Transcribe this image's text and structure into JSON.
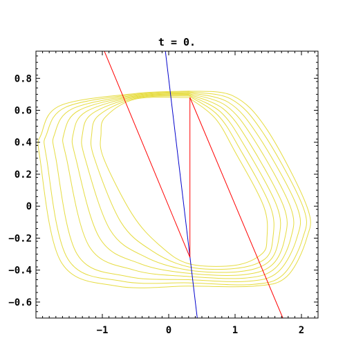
{
  "chart_data": {
    "type": "line",
    "title": "t = 0.",
    "xlabel": "",
    "ylabel": "",
    "xlim": [
      -2.0,
      2.25
    ],
    "ylim": [
      -0.7,
      0.97
    ],
    "xticks": [
      -1,
      0,
      1,
      2
    ],
    "xtick_labels": [
      "−1",
      "0",
      "1",
      "2"
    ],
    "yticks": [
      -0.6,
      -0.4,
      -0.2,
      0,
      0.2,
      0.4,
      0.6,
      0.8
    ],
    "ytick_labels": [
      "−0.6",
      "−0.4",
      "−0.2",
      "0",
      "0.2",
      "0.4",
      "0.6",
      "0.8"
    ],
    "grid": false,
    "legend": "none",
    "colors": {
      "contours": "#e6dc40",
      "red": "#ff0000",
      "blue": "#0000cc",
      "frame": "#000000"
    },
    "contours": {
      "color": "contours",
      "curves": [
        {
          "points": [
            [
              0.3,
              0.68
            ],
            [
              -0.5,
              0.67
            ],
            [
              -0.95,
              0.56
            ],
            [
              -1.02,
              0.45
            ],
            [
              -0.98,
              0.3
            ],
            [
              -0.55,
              -0.05
            ],
            [
              -0.15,
              -0.24
            ],
            [
              0.3,
              -0.36
            ],
            [
              1.0,
              -0.37
            ],
            [
              1.4,
              -0.3
            ],
            [
              1.48,
              -0.2
            ],
            [
              1.43,
              0.0
            ],
            [
              1.0,
              0.34
            ],
            [
              0.7,
              0.55
            ],
            [
              0.3,
              0.68
            ]
          ]
        },
        {
          "points": [
            [
              0.3,
              0.69
            ],
            [
              -0.5,
              0.675
            ],
            [
              -1.05,
              0.57
            ],
            [
              -1.16,
              0.45
            ],
            [
              -1.12,
              0.3
            ],
            [
              -0.72,
              -0.1
            ],
            [
              -0.25,
              -0.28
            ],
            [
              0.3,
              -0.38
            ],
            [
              1.0,
              -0.39
            ],
            [
              1.45,
              -0.33
            ],
            [
              1.57,
              -0.2
            ],
            [
              1.53,
              0.0
            ],
            [
              1.07,
              0.36
            ],
            [
              0.74,
              0.57
            ],
            [
              0.3,
              0.69
            ]
          ]
        },
        {
          "points": [
            [
              0.3,
              0.695
            ],
            [
              -0.5,
              0.68
            ],
            [
              -1.15,
              0.58
            ],
            [
              -1.3,
              0.45
            ],
            [
              -1.26,
              0.3
            ],
            [
              -0.88,
              -0.15
            ],
            [
              -0.34,
              -0.32
            ],
            [
              0.3,
              -0.4
            ],
            [
              1.05,
              -0.41
            ],
            [
              1.5,
              -0.35
            ],
            [
              1.66,
              -0.2
            ],
            [
              1.63,
              0.0
            ],
            [
              1.14,
              0.38
            ],
            [
              0.78,
              0.59
            ],
            [
              0.3,
              0.695
            ]
          ]
        },
        {
          "points": [
            [
              0.3,
              0.7
            ],
            [
              -0.5,
              0.685
            ],
            [
              -1.25,
              0.59
            ],
            [
              -1.44,
              0.45
            ],
            [
              -1.4,
              0.3
            ],
            [
              -1.04,
              -0.2
            ],
            [
              -0.43,
              -0.36
            ],
            [
              0.3,
              -0.42
            ],
            [
              1.1,
              -0.43
            ],
            [
              1.55,
              -0.37
            ],
            [
              1.75,
              -0.2
            ],
            [
              1.73,
              0.0
            ],
            [
              1.21,
              0.4
            ],
            [
              0.82,
              0.61
            ],
            [
              0.3,
              0.7
            ]
          ]
        },
        {
          "points": [
            [
              0.3,
              0.705
            ],
            [
              -0.5,
              0.69
            ],
            [
              -1.35,
              0.6
            ],
            [
              -1.58,
              0.45
            ],
            [
              -1.54,
              0.3
            ],
            [
              -1.2,
              -0.25
            ],
            [
              -0.52,
              -0.4
            ],
            [
              0.3,
              -0.44
            ],
            [
              1.15,
              -0.45
            ],
            [
              1.6,
              -0.39
            ],
            [
              1.84,
              -0.2
            ],
            [
              1.83,
              0.0
            ],
            [
              1.28,
              0.42
            ],
            [
              0.86,
              0.63
            ],
            [
              0.3,
              0.705
            ]
          ]
        },
        {
          "points": [
            [
              0.3,
              0.71
            ],
            [
              -0.5,
              0.695
            ],
            [
              -1.45,
              0.61
            ],
            [
              -1.72,
              0.45
            ],
            [
              -1.7,
              0.3
            ],
            [
              -1.38,
              -0.3
            ],
            [
              -0.62,
              -0.44
            ],
            [
              0.3,
              -0.46
            ],
            [
              1.2,
              -0.47
            ],
            [
              1.65,
              -0.41
            ],
            [
              1.93,
              -0.2
            ],
            [
              1.93,
              0.0
            ],
            [
              1.35,
              0.44
            ],
            [
              0.9,
              0.65
            ],
            [
              0.3,
              0.71
            ]
          ]
        },
        {
          "points": [
            [
              0.3,
              0.715
            ],
            [
              -0.5,
              0.7
            ],
            [
              -1.55,
              0.62
            ],
            [
              -1.84,
              0.45
            ],
            [
              -1.84,
              0.3
            ],
            [
              -1.52,
              -0.33
            ],
            [
              -0.7,
              -0.47
            ],
            [
              0.3,
              -0.48
            ],
            [
              1.25,
              -0.49
            ],
            [
              1.72,
              -0.43
            ],
            [
              2.02,
              -0.2
            ],
            [
              2.02,
              0.0
            ],
            [
              1.42,
              0.46
            ],
            [
              0.94,
              0.67
            ],
            [
              0.3,
              0.715
            ]
          ]
        },
        {
          "points": [
            [
              0.3,
              0.72
            ],
            [
              -0.5,
              0.705
            ],
            [
              -1.63,
              0.63
            ],
            [
              -1.92,
              0.45
            ],
            [
              -1.94,
              0.3
            ],
            [
              -1.62,
              -0.35
            ],
            [
              -0.78,
              -0.5
            ],
            [
              0.3,
              -0.5
            ],
            [
              1.3,
              -0.5
            ],
            [
              1.78,
              -0.44
            ],
            [
              2.08,
              -0.2
            ],
            [
              2.08,
              0.0
            ],
            [
              1.48,
              0.48
            ],
            [
              0.97,
              0.69
            ],
            [
              0.3,
              0.72
            ]
          ]
        }
      ]
    },
    "segments": [
      {
        "color": "blue",
        "points": [
          [
            -0.05,
            0.97
          ],
          [
            0.43,
            -0.7
          ]
        ]
      },
      {
        "color": "red",
        "points": [
          [
            -0.97,
            0.97
          ],
          [
            0.32,
            -0.32
          ]
        ]
      },
      {
        "color": "red",
        "points": [
          [
            0.32,
            -0.32
          ],
          [
            0.32,
            0.68
          ]
        ]
      },
      {
        "color": "red",
        "points": [
          [
            0.32,
            0.68
          ],
          [
            1.72,
            -0.7
          ]
        ]
      }
    ]
  }
}
